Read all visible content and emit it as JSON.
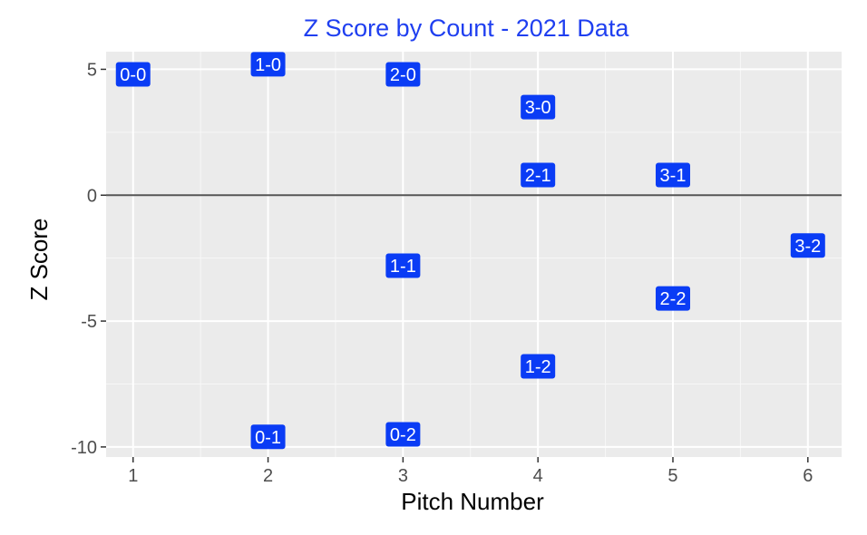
{
  "chart_data": {
    "type": "scatter",
    "title": "Z Score by Count - 2021 Data",
    "xlabel": "Pitch Number",
    "ylabel": "Z Score",
    "xlim": [
      0.8,
      6.25
    ],
    "ylim": [
      -10.4,
      5.7
    ],
    "x_ticks": [
      1,
      2,
      3,
      4,
      5,
      6
    ],
    "y_ticks": [
      -10,
      -5,
      0,
      5
    ],
    "y_tick_labels": [
      "-10",
      "-5",
      "0",
      "5"
    ],
    "hline": 0,
    "grid": true,
    "label_fill": "#0a3cf5",
    "panel_bg": "#ebebeb",
    "title_color": "#1f3ff0",
    "points": [
      {
        "label": "0-0",
        "x": 1,
        "y": 4.8
      },
      {
        "label": "1-0",
        "x": 2,
        "y": 5.2
      },
      {
        "label": "0-1",
        "x": 2,
        "y": -9.6
      },
      {
        "label": "2-0",
        "x": 3,
        "y": 4.8
      },
      {
        "label": "1-1",
        "x": 3,
        "y": -2.8
      },
      {
        "label": "0-2",
        "x": 3,
        "y": -9.5
      },
      {
        "label": "3-0",
        "x": 4,
        "y": 3.5
      },
      {
        "label": "2-1",
        "x": 4,
        "y": 0.8
      },
      {
        "label": "1-2",
        "x": 4,
        "y": -6.8
      },
      {
        "label": "3-1",
        "x": 5,
        "y": 0.8
      },
      {
        "label": "2-2",
        "x": 5,
        "y": -4.1
      },
      {
        "label": "3-2",
        "x": 6,
        "y": -2.0
      }
    ]
  }
}
